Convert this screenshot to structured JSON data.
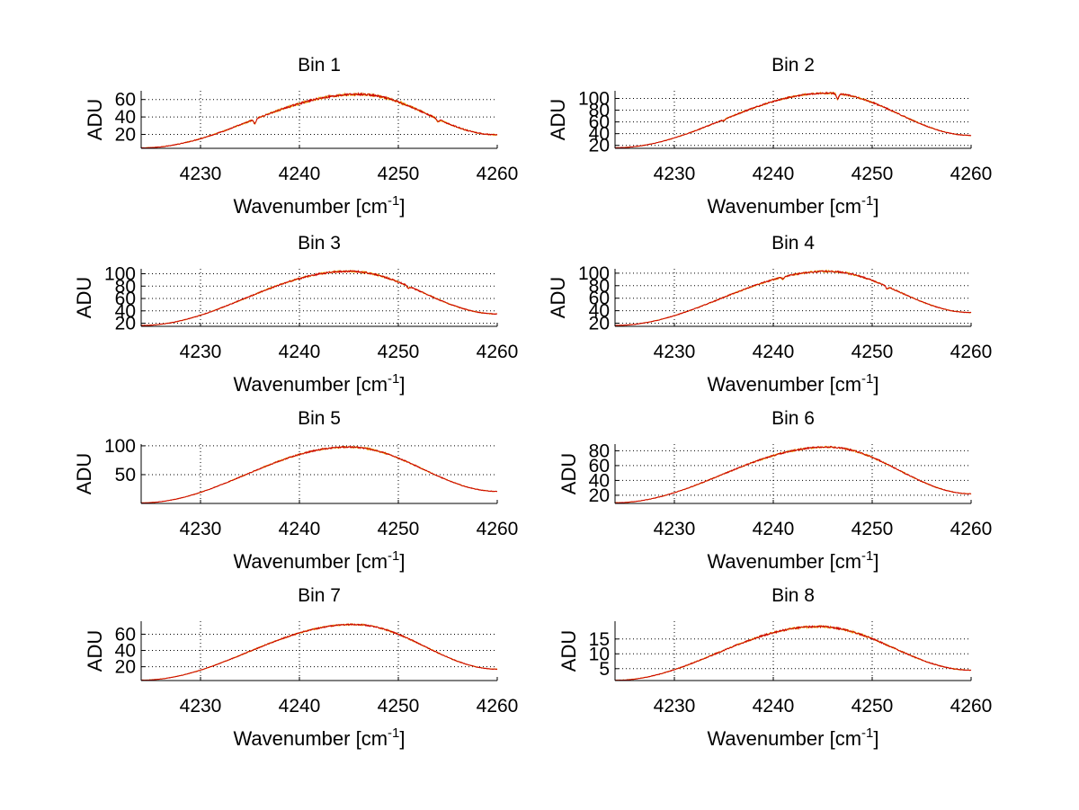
{
  "colors": {
    "background": "#ffffff",
    "axes": "#000000",
    "grid": "#000000",
    "trace_top": "#cc0000",
    "trace_noise": "#e8a800"
  },
  "chart_data": [
    {
      "type": "line",
      "title": "Bin 1",
      "xlabel": "Wavenumber [cm",
      "xlabel_sup": "-1",
      "xlabel_close": "]",
      "ylabel": "ADU",
      "xlim": [
        4224,
        4260
      ],
      "ylim": [
        4,
        70
      ],
      "xticks": [
        4230,
        4240,
        4250,
        4260
      ],
      "yticks": [
        20,
        40,
        60
      ],
      "grid": true,
      "curve": {
        "peak_x": 4246,
        "peak_y": 66,
        "edge_left": 4.5,
        "edge_right": 19.5,
        "noise": 1.2,
        "dips": [
          [
            4235.5,
            -5
          ],
          [
            4254,
            -3
          ]
        ]
      }
    },
    {
      "type": "line",
      "title": "Bin 2",
      "xlabel": "Wavenumber [cm",
      "xlabel_sup": "-1",
      "xlabel_close": "]",
      "ylabel": "ADU",
      "xlim": [
        4224,
        4260
      ],
      "ylim": [
        15,
        113
      ],
      "xticks": [
        4230,
        4240,
        4250,
        4260
      ],
      "yticks": [
        20,
        40,
        60,
        80,
        100
      ],
      "grid": true,
      "curve": {
        "peak_x": 4245.5,
        "peak_y": 109,
        "edge_left": 16,
        "edge_right": 37,
        "noise": 1.3,
        "dips": [
          [
            4246.5,
            -9
          ],
          [
            4235,
            -2
          ]
        ]
      }
    },
    {
      "type": "line",
      "title": "Bin 3",
      "xlabel": "Wavenumber [cm",
      "xlabel_sup": "-1",
      "xlabel_close": "]",
      "ylabel": "ADU",
      "xlim": [
        4224,
        4260
      ],
      "ylim": [
        15,
        108
      ],
      "xticks": [
        4230,
        4240,
        4250,
        4260
      ],
      "yticks": [
        20,
        40,
        60,
        80,
        100
      ],
      "grid": true,
      "curve": {
        "peak_x": 4245,
        "peak_y": 104,
        "edge_left": 16.5,
        "edge_right": 35,
        "noise": 1.3,
        "dips": [
          [
            4251,
            -3
          ]
        ]
      }
    },
    {
      "type": "line",
      "title": "Bin 4",
      "xlabel": "Wavenumber [cm",
      "xlabel_sup": "-1",
      "xlabel_close": "]",
      "ylabel": "ADU",
      "xlim": [
        4224,
        4260
      ],
      "ylim": [
        15,
        107
      ],
      "xticks": [
        4230,
        4240,
        4250,
        4260
      ],
      "yticks": [
        20,
        40,
        60,
        80,
        100
      ],
      "grid": true,
      "curve": {
        "peak_x": 4245.5,
        "peak_y": 103,
        "edge_left": 16.5,
        "edge_right": 37,
        "noise": 1.2,
        "dips": [
          [
            4241,
            -3
          ],
          [
            4251.5,
            -4
          ]
        ]
      }
    },
    {
      "type": "line",
      "title": "Bin 5",
      "xlabel": "Wavenumber [cm",
      "xlabel_sup": "-1",
      "xlabel_close": "]",
      "ylabel": "ADU",
      "xlim": [
        4224,
        4260
      ],
      "ylim": [
        0,
        103
      ],
      "xticks": [
        4230,
        4240,
        4250,
        4260
      ],
      "yticks": [
        50,
        100
      ],
      "grid": true,
      "curve": {
        "peak_x": 4245,
        "peak_y": 98,
        "edge_left": 1,
        "edge_right": 21,
        "noise": 1.2,
        "dips": []
      }
    },
    {
      "type": "line",
      "title": "Bin 6",
      "xlabel": "Wavenumber [cm",
      "xlabel_sup": "-1",
      "xlabel_close": "]",
      "ylabel": "ADU",
      "xlim": [
        4224,
        4260
      ],
      "ylim": [
        9,
        89
      ],
      "xticks": [
        4230,
        4240,
        4250,
        4260
      ],
      "yticks": [
        20,
        40,
        60,
        80
      ],
      "grid": true,
      "curve": {
        "peak_x": 4245.5,
        "peak_y": 85,
        "edge_left": 10,
        "edge_right": 22,
        "noise": 1.0,
        "dips": []
      }
    },
    {
      "type": "line",
      "title": "Bin 7",
      "xlabel": "Wavenumber [cm",
      "xlabel_sup": "-1",
      "xlabel_close": "]",
      "ylabel": "ADU",
      "xlim": [
        4224,
        4260
      ],
      "ylim": [
        3,
        76
      ],
      "xticks": [
        4230,
        4240,
        4250,
        4260
      ],
      "yticks": [
        20,
        40,
        60
      ],
      "grid": true,
      "curve": {
        "peak_x": 4245.5,
        "peak_y": 72,
        "edge_left": 3.5,
        "edge_right": 17,
        "noise": 0.8,
        "dips": []
      }
    },
    {
      "type": "line",
      "title": "Bin 8",
      "xlabel": "Wavenumber [cm",
      "xlabel_sup": "-1",
      "xlabel_close": "]",
      "ylabel": "ADU",
      "xlim": [
        4224,
        4260
      ],
      "ylim": [
        1,
        21
      ],
      "xticks": [
        4230,
        4240,
        4250,
        4260
      ],
      "yticks": [
        5,
        10,
        15
      ],
      "grid": true,
      "curve": {
        "peak_x": 4244.5,
        "peak_y": 19.2,
        "edge_left": 1.1,
        "edge_right": 4.5,
        "noise": 0.3,
        "dips": []
      }
    }
  ]
}
